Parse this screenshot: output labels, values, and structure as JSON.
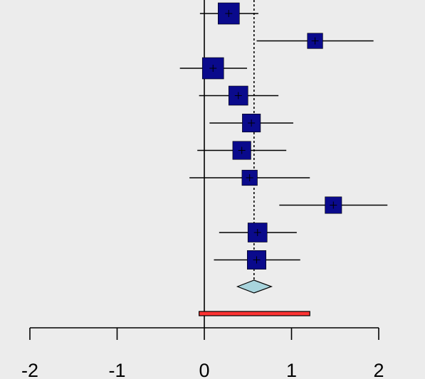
{
  "chart_data": {
    "type": "forest",
    "title": "",
    "xlabel": "",
    "xlim": [
      -2,
      2
    ],
    "ticks": [
      {
        "value": -2,
        "label": "-2"
      },
      {
        "value": -1,
        "label": "-1"
      },
      {
        "value": 0,
        "label": "0"
      },
      {
        "value": 1,
        "label": "1"
      },
      {
        "value": 2,
        "label": "2"
      }
    ],
    "null_line": 0,
    "pooled_line": 0.57,
    "studies": [
      {
        "estimate": 0.28,
        "lower": -0.05,
        "upper": 0.62,
        "weight": 1.0
      },
      {
        "estimate": 1.27,
        "lower": 0.6,
        "upper": 1.94,
        "weight": 0.72
      },
      {
        "estimate": 0.1,
        "lower": -0.28,
        "upper": 0.49,
        "weight": 1.0
      },
      {
        "estimate": 0.39,
        "lower": -0.06,
        "upper": 0.85,
        "weight": 0.9
      },
      {
        "estimate": 0.54,
        "lower": 0.06,
        "upper": 1.02,
        "weight": 0.85
      },
      {
        "estimate": 0.43,
        "lower": -0.08,
        "upper": 0.94,
        "weight": 0.85
      },
      {
        "estimate": 0.52,
        "lower": -0.17,
        "upper": 1.21,
        "weight": 0.72
      },
      {
        "estimate": 1.48,
        "lower": 0.86,
        "upper": 2.1,
        "weight": 0.78
      },
      {
        "estimate": 0.61,
        "lower": 0.17,
        "upper": 1.06,
        "weight": 0.9
      },
      {
        "estimate": 0.6,
        "lower": 0.11,
        "upper": 1.1,
        "weight": 0.88
      }
    ],
    "summary": {
      "estimate": 0.57,
      "lower": 0.38,
      "upper": 0.77
    },
    "prediction_interval": {
      "lower": -0.06,
      "upper": 1.21
    },
    "colors": {
      "background": "#ececec",
      "study_box": "#0a0a8c",
      "summary_diamond": "#a8d4dc",
      "prediction_bar": "#ff3333"
    }
  }
}
